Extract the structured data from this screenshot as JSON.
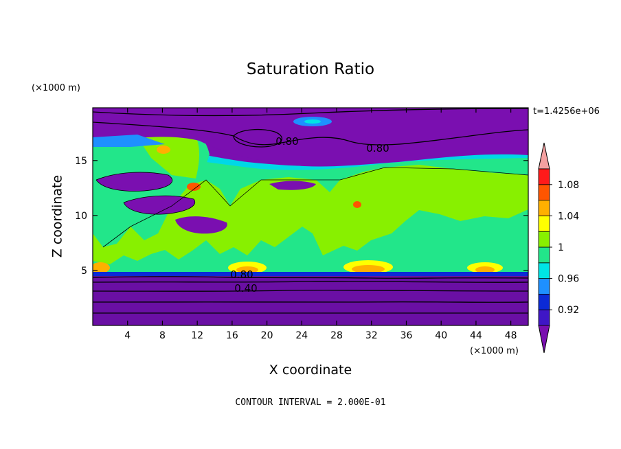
{
  "chart_data": {
    "type": "heatmap",
    "title": "Saturation Ratio",
    "xlabel": "X coordinate",
    "ylabel": "Z coordinate",
    "x_unit": "(×1000 m)",
    "y_unit": "(×1000 m)",
    "xlim": [
      0,
      50
    ],
    "ylim": [
      0,
      19.8
    ],
    "x_ticks": [
      4,
      8,
      12,
      16,
      20,
      24,
      28,
      32,
      36,
      40,
      44,
      48
    ],
    "y_ticks": [
      5,
      10,
      15
    ],
    "time_label": "t=1.4256e+06",
    "contour_interval_label": "CONTOUR INTERVAL = 2.000E-01",
    "contour_labels": [
      "0.80",
      "0.80",
      "0.80",
      "0.40"
    ],
    "colorbar": {
      "levels": [
        0.9,
        0.92,
        0.94,
        0.96,
        0.98,
        1.0,
        1.02,
        1.04,
        1.06,
        1.08,
        1.1
      ],
      "tick_labels": [
        "0.92",
        "0.96",
        "1",
        "1.04",
        "1.08"
      ],
      "colors": [
        "#7a0fb0",
        "#3f16c6",
        "#0b2ad6",
        "#1e90ff",
        "#00e5e5",
        "#22e68a",
        "#88f000",
        "#ffff00",
        "#ffb000",
        "#ff5500",
        "#ff1a1a",
        "#f4a0a0"
      ]
    },
    "colors": {
      "background_band": "#7a0fb0",
      "cloud_region": "#88f000",
      "saturated_edge": "#22e68a"
    }
  }
}
